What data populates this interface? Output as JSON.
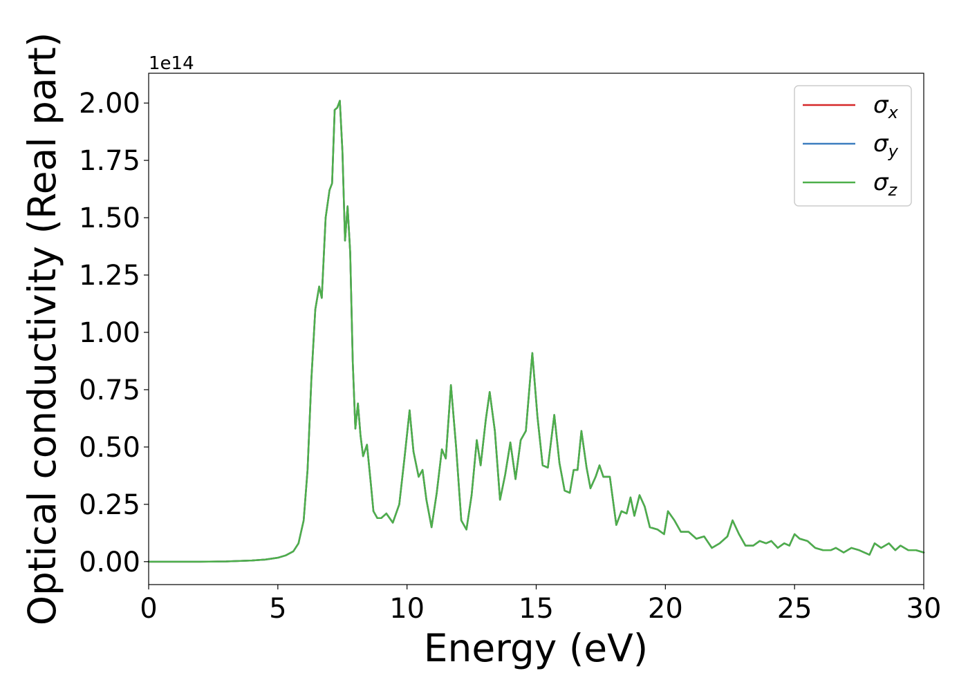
{
  "chart_data": {
    "type": "line",
    "title": "",
    "xlabel": "Energy (eV)",
    "ylabel": "Optical conductivity (Real part)",
    "y_offset_text": "1e14",
    "y_multiplier": 100000000000000.0,
    "xlim": [
      0,
      30
    ],
    "ylim": [
      -0.1,
      2.13
    ],
    "x_ticks": [
      0,
      5,
      10,
      15,
      20,
      25,
      30
    ],
    "x_tick_labels": [
      "0",
      "5",
      "10",
      "15",
      "20",
      "25",
      "30"
    ],
    "y_ticks": [
      0.0,
      0.25,
      0.5,
      0.75,
      1.0,
      1.25,
      1.5,
      1.75,
      2.0
    ],
    "y_tick_labels": [
      "0.00",
      "0.25",
      "0.50",
      "0.75",
      "1.00",
      "1.25",
      "1.50",
      "1.75",
      "2.00"
    ],
    "grid": false,
    "legend_position": "top-right",
    "legend": [
      {
        "base": "σ",
        "sub": "x",
        "color": "#d62728"
      },
      {
        "base": "σ",
        "sub": "y",
        "color": "#3b7dbf"
      },
      {
        "base": "σ",
        "sub": "z",
        "color": "#4daf4a"
      }
    ],
    "x": [
      0,
      1,
      2,
      3,
      4,
      4.5,
      5,
      5.3,
      5.6,
      5.8,
      6.0,
      6.15,
      6.3,
      6.45,
      6.6,
      6.7,
      6.85,
      7.0,
      7.1,
      7.2,
      7.3,
      7.4,
      7.5,
      7.6,
      7.7,
      7.8,
      7.9,
      8.0,
      8.1,
      8.2,
      8.3,
      8.45,
      8.6,
      8.7,
      8.85,
      9.0,
      9.2,
      9.45,
      9.7,
      9.9,
      10.1,
      10.25,
      10.45,
      10.6,
      10.75,
      10.95,
      11.15,
      11.35,
      11.5,
      11.7,
      11.9,
      12.1,
      12.3,
      12.5,
      12.7,
      12.85,
      13.05,
      13.2,
      13.4,
      13.6,
      13.8,
      14.0,
      14.2,
      14.4,
      14.6,
      14.85,
      15.05,
      15.25,
      15.45,
      15.7,
      15.9,
      16.1,
      16.3,
      16.45,
      16.6,
      16.75,
      16.95,
      17.1,
      17.3,
      17.45,
      17.6,
      17.85,
      18.1,
      18.3,
      18.5,
      18.65,
      18.8,
      19.0,
      19.2,
      19.4,
      19.7,
      19.95,
      20.1,
      20.35,
      20.6,
      20.9,
      21.2,
      21.5,
      21.8,
      22.1,
      22.4,
      22.6,
      22.85,
      23.1,
      23.4,
      23.65,
      23.9,
      24.1,
      24.35,
      24.6,
      24.8,
      25.0,
      25.2,
      25.5,
      25.8,
      26.1,
      26.4,
      26.6,
      26.9,
      27.2,
      27.5,
      27.9,
      28.1,
      28.35,
      28.65,
      28.9,
      29.1,
      29.4,
      29.7,
      30.0
    ],
    "series": [
      {
        "name": "σx",
        "color": "#d62728",
        "y": [
          0,
          0,
          0,
          0.001,
          0.005,
          0.009,
          0.017,
          0.027,
          0.045,
          0.08,
          0.18,
          0.4,
          0.8,
          1.1,
          1.2,
          1.15,
          1.5,
          1.62,
          1.65,
          1.97,
          1.98,
          2.01,
          1.79,
          1.4,
          1.55,
          1.35,
          0.87,
          0.58,
          0.69,
          0.55,
          0.46,
          0.51,
          0.34,
          0.22,
          0.19,
          0.19,
          0.21,
          0.17,
          0.25,
          0.45,
          0.66,
          0.48,
          0.37,
          0.4,
          0.27,
          0.15,
          0.3,
          0.49,
          0.45,
          0.77,
          0.5,
          0.18,
          0.14,
          0.29,
          0.53,
          0.42,
          0.62,
          0.74,
          0.57,
          0.27,
          0.38,
          0.52,
          0.36,
          0.53,
          0.57,
          0.91,
          0.63,
          0.42,
          0.41,
          0.64,
          0.43,
          0.31,
          0.3,
          0.4,
          0.4,
          0.57,
          0.41,
          0.32,
          0.37,
          0.42,
          0.37,
          0.37,
          0.16,
          0.22,
          0.21,
          0.28,
          0.2,
          0.29,
          0.24,
          0.15,
          0.14,
          0.12,
          0.22,
          0.18,
          0.13,
          0.13,
          0.1,
          0.11,
          0.06,
          0.08,
          0.11,
          0.18,
          0.12,
          0.07,
          0.07,
          0.09,
          0.08,
          0.09,
          0.06,
          0.08,
          0.07,
          0.12,
          0.1,
          0.09,
          0.06,
          0.05,
          0.05,
          0.06,
          0.04,
          0.06,
          0.05,
          0.03,
          0.08,
          0.06,
          0.08,
          0.05,
          0.07,
          0.05,
          0.05,
          0.04
        ]
      },
      {
        "name": "σy",
        "color": "#3b7dbf",
        "y": [
          0,
          0,
          0,
          0.001,
          0.005,
          0.009,
          0.017,
          0.027,
          0.045,
          0.08,
          0.18,
          0.4,
          0.8,
          1.1,
          1.2,
          1.15,
          1.5,
          1.62,
          1.65,
          1.97,
          1.98,
          2.01,
          1.79,
          1.4,
          1.55,
          1.35,
          0.87,
          0.58,
          0.69,
          0.55,
          0.46,
          0.51,
          0.34,
          0.22,
          0.19,
          0.19,
          0.21,
          0.17,
          0.25,
          0.45,
          0.66,
          0.48,
          0.37,
          0.4,
          0.27,
          0.15,
          0.3,
          0.49,
          0.45,
          0.77,
          0.5,
          0.18,
          0.14,
          0.29,
          0.53,
          0.42,
          0.62,
          0.74,
          0.57,
          0.27,
          0.38,
          0.52,
          0.36,
          0.53,
          0.57,
          0.91,
          0.63,
          0.42,
          0.41,
          0.64,
          0.43,
          0.31,
          0.3,
          0.4,
          0.4,
          0.57,
          0.41,
          0.32,
          0.37,
          0.42,
          0.37,
          0.37,
          0.16,
          0.22,
          0.21,
          0.28,
          0.2,
          0.29,
          0.24,
          0.15,
          0.14,
          0.12,
          0.22,
          0.18,
          0.13,
          0.13,
          0.1,
          0.11,
          0.06,
          0.08,
          0.11,
          0.18,
          0.12,
          0.07,
          0.07,
          0.09,
          0.08,
          0.09,
          0.06,
          0.08,
          0.07,
          0.12,
          0.1,
          0.09,
          0.06,
          0.05,
          0.05,
          0.06,
          0.04,
          0.06,
          0.05,
          0.03,
          0.08,
          0.06,
          0.08,
          0.05,
          0.07,
          0.05,
          0.05,
          0.04
        ]
      },
      {
        "name": "σz",
        "color": "#4daf4a",
        "y": [
          0,
          0,
          0,
          0.001,
          0.005,
          0.009,
          0.017,
          0.027,
          0.045,
          0.08,
          0.18,
          0.4,
          0.8,
          1.1,
          1.2,
          1.15,
          1.5,
          1.62,
          1.65,
          1.97,
          1.98,
          2.01,
          1.79,
          1.4,
          1.55,
          1.35,
          0.87,
          0.58,
          0.69,
          0.55,
          0.46,
          0.51,
          0.34,
          0.22,
          0.19,
          0.19,
          0.21,
          0.17,
          0.25,
          0.45,
          0.66,
          0.48,
          0.37,
          0.4,
          0.27,
          0.15,
          0.3,
          0.49,
          0.45,
          0.77,
          0.5,
          0.18,
          0.14,
          0.29,
          0.53,
          0.42,
          0.62,
          0.74,
          0.57,
          0.27,
          0.38,
          0.52,
          0.36,
          0.53,
          0.57,
          0.91,
          0.63,
          0.42,
          0.41,
          0.64,
          0.43,
          0.31,
          0.3,
          0.4,
          0.4,
          0.57,
          0.41,
          0.32,
          0.37,
          0.42,
          0.37,
          0.37,
          0.16,
          0.22,
          0.21,
          0.28,
          0.2,
          0.29,
          0.24,
          0.15,
          0.14,
          0.12,
          0.22,
          0.18,
          0.13,
          0.13,
          0.1,
          0.11,
          0.06,
          0.08,
          0.11,
          0.18,
          0.12,
          0.07,
          0.07,
          0.09,
          0.08,
          0.09,
          0.06,
          0.08,
          0.07,
          0.12,
          0.1,
          0.09,
          0.06,
          0.05,
          0.05,
          0.06,
          0.04,
          0.06,
          0.05,
          0.03,
          0.08,
          0.06,
          0.08,
          0.05,
          0.07,
          0.05,
          0.05,
          0.04
        ]
      }
    ]
  }
}
